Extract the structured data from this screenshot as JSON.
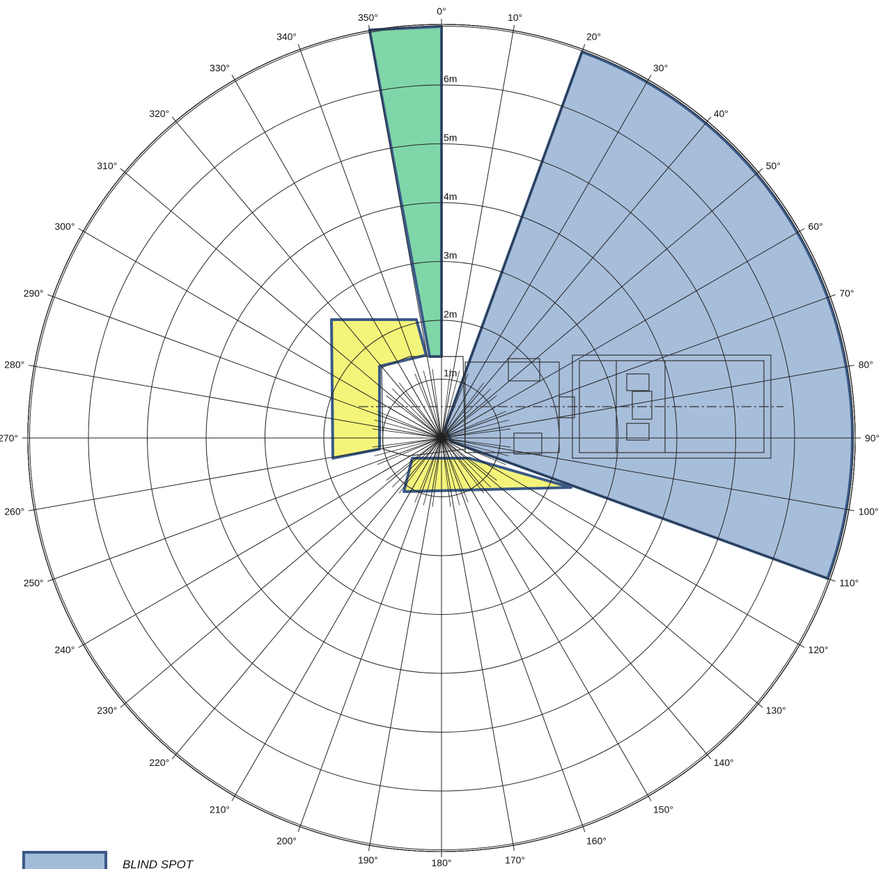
{
  "diagram": {
    "angle_step_deg": 10,
    "ring_count": 12,
    "angle_labels": [
      "0°",
      "10°",
      "20°",
      "30°",
      "40°",
      "50°",
      "60°",
      "70°",
      "80°",
      "90°",
      "100°",
      "110°",
      "120°",
      "130°",
      "140°",
      "150°",
      "160°",
      "170°",
      "180°",
      "190°",
      "200°",
      "210°",
      "220°",
      "230°",
      "240°",
      "250°",
      "260°",
      "270°",
      "280°",
      "290°",
      "300°",
      "310°",
      "320°",
      "330°",
      "340°",
      "350°"
    ],
    "ring_labels": [
      "1m",
      "2m",
      "3m",
      "4m",
      "5m",
      "6m"
    ],
    "zones": [
      {
        "name": "blind-spot-zone-right",
        "color": "#a2bbd9",
        "from_deg": 20,
        "to_deg": 110
      },
      {
        "name": "visible-zone-front",
        "color": "#7fd6a8",
        "from_deg": 350,
        "to_deg": 0
      },
      {
        "name": "obstructed-zone-left",
        "color": "#f4f47a"
      },
      {
        "name": "obstructed-zone-rear",
        "color": "#f4f47a"
      }
    ],
    "outline_color": "#3a5a87",
    "legend": {
      "blind_spot_label": "BLIND SPOT",
      "blind_spot_color": "#a2bbd9"
    }
  }
}
